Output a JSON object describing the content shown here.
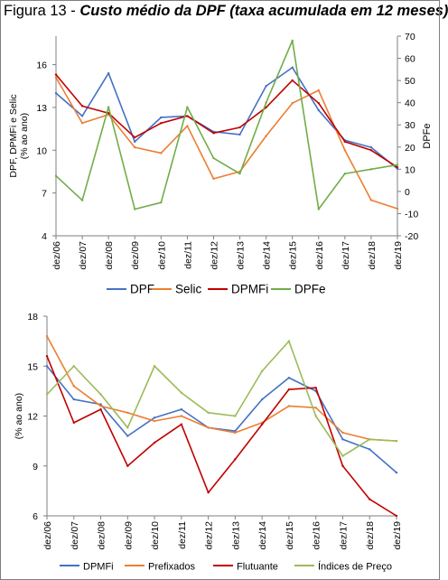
{
  "figure": {
    "title_prefix": "Figura 13 - ",
    "title_main": "Custo médio da DPF (taxa acumulada em 12 meses)"
  },
  "chart_data": [
    {
      "type": "line",
      "title": "",
      "x": [
        "dez/06",
        "dez/07",
        "dez/08",
        "dez/09",
        "dez/10",
        "dez/11",
        "dez/12",
        "dez/13",
        "dez/14",
        "dez/15",
        "dez/16",
        "dez/17",
        "dez/18",
        "dez/19"
      ],
      "ylabel": "DPF, DPMFi e Selic (% ao ano)",
      "y2label": "DPFe",
      "ylim": [
        4,
        18
      ],
      "yticks": [
        4,
        7,
        10,
        13,
        16
      ],
      "y2lim": [
        -20,
        70
      ],
      "y2ticks": [
        -20,
        -10,
        0,
        10,
        20,
        30,
        40,
        50,
        60,
        70
      ],
      "grid": false,
      "legend_position": "bottom",
      "series": [
        {
          "name": "DPF",
          "axis": "left",
          "color": "#4472c4",
          "values": [
            14.0,
            12.4,
            15.4,
            10.6,
            12.3,
            12.4,
            11.3,
            11.1,
            14.5,
            15.8,
            12.8,
            10.7,
            10.2,
            8.7
          ]
        },
        {
          "name": "Selic",
          "axis": "left",
          "color": "#ed7d31",
          "values": [
            15.1,
            11.9,
            12.5,
            10.2,
            9.8,
            11.7,
            8.0,
            8.5,
            11.0,
            13.3,
            14.2,
            10.0,
            6.5,
            5.9
          ]
        },
        {
          "name": "DPMFi",
          "axis": "left",
          "color": "#c00000",
          "values": [
            15.3,
            13.1,
            12.6,
            10.9,
            11.9,
            12.4,
            11.2,
            11.6,
            13.0,
            14.9,
            13.3,
            10.6,
            10.0,
            8.8
          ]
        },
        {
          "name": "DPFe",
          "axis": "right",
          "color": "#70ad47",
          "values": [
            7,
            -4,
            38,
            -8,
            -5,
            38,
            15,
            8,
            40,
            68,
            -8,
            8,
            10,
            12
          ]
        }
      ]
    },
    {
      "type": "line",
      "title": "",
      "x": [
        "dez/06",
        "dez/07",
        "dez/08",
        "dez/09",
        "dez/10",
        "dez/11",
        "dez/12",
        "dez/13",
        "dez/14",
        "dez/15",
        "dez/16",
        "dez/17",
        "dez/18",
        "dez/19"
      ],
      "ylabel": "(% ao ano)",
      "ylim": [
        6,
        18
      ],
      "yticks": [
        6,
        9,
        12,
        15,
        18
      ],
      "grid": false,
      "legend_position": "bottom",
      "series": [
        {
          "name": "DPMFi",
          "color": "#4472c4",
          "values": [
            15.0,
            13.0,
            12.7,
            10.8,
            11.9,
            12.4,
            11.3,
            11.1,
            13.0,
            14.3,
            13.5,
            10.6,
            10.0,
            8.6
          ]
        },
        {
          "name": "Prefixados",
          "color": "#ed7d31",
          "values": [
            16.8,
            13.8,
            12.6,
            12.2,
            11.7,
            12.0,
            11.3,
            11.0,
            11.6,
            12.6,
            12.5,
            11.0,
            10.6,
            10.5
          ]
        },
        {
          "name": "Flutuante",
          "color": "#c00000",
          "values": [
            15.6,
            11.6,
            12.4,
            9.0,
            10.4,
            11.5,
            7.4,
            9.4,
            11.5,
            13.6,
            13.7,
            9.0,
            7.0,
            6.0
          ]
        },
        {
          "name": "Índices de Preço",
          "color": "#9bbb59",
          "values": [
            13.3,
            15.0,
            13.3,
            11.3,
            15.0,
            13.4,
            12.2,
            12.0,
            14.7,
            16.5,
            12.0,
            9.6,
            10.6,
            10.5
          ]
        }
      ]
    }
  ]
}
